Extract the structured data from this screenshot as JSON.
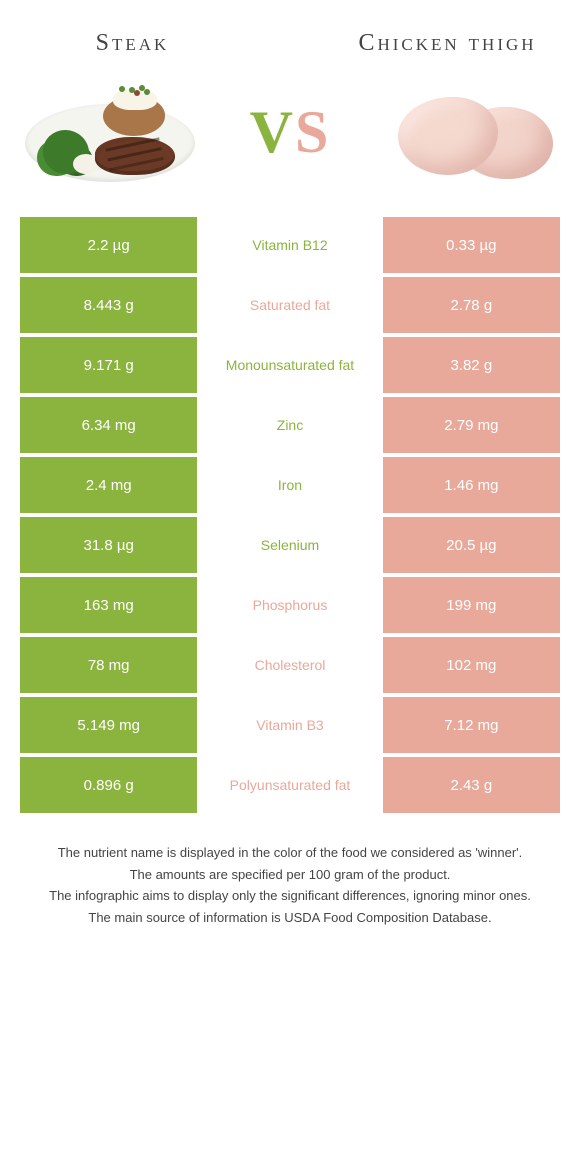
{
  "colors": {
    "left": "#8bb43e",
    "right": "#e8a99a",
    "vs_left": "#8bb43e",
    "vs_right": "#e8a99a"
  },
  "header": {
    "left_title": "Steak",
    "right_title": "Chicken thigh",
    "vs_v": "V",
    "vs_s": "S"
  },
  "rows": [
    {
      "left": "2.2 µg",
      "mid": "Vitamin B12",
      "right": "0.33 µg",
      "winner": "left"
    },
    {
      "left": "8.443 g",
      "mid": "Saturated fat",
      "right": "2.78 g",
      "winner": "right"
    },
    {
      "left": "9.171 g",
      "mid": "Monounsaturated fat",
      "right": "3.82 g",
      "winner": "left"
    },
    {
      "left": "6.34 mg",
      "mid": "Zinc",
      "right": "2.79 mg",
      "winner": "left"
    },
    {
      "left": "2.4 mg",
      "mid": "Iron",
      "right": "1.46 mg",
      "winner": "left"
    },
    {
      "left": "31.8 µg",
      "mid": "Selenium",
      "right": "20.5 µg",
      "winner": "left"
    },
    {
      "left": "163 mg",
      "mid": "Phosphorus",
      "right": "199 mg",
      "winner": "right"
    },
    {
      "left": "78 mg",
      "mid": "Cholesterol",
      "right": "102 mg",
      "winner": "right"
    },
    {
      "left": "5.149 mg",
      "mid": "Vitamin B3",
      "right": "7.12 mg",
      "winner": "right"
    },
    {
      "left": "0.896 g",
      "mid": "Polyunsaturated fat",
      "right": "2.43 g",
      "winner": "right"
    }
  ],
  "footer": {
    "line1": "The nutrient name is displayed in the color of the food we considered as 'winner'.",
    "line2": "The amounts are specified per 100 gram of the product.",
    "line3": "The infographic aims to display only the significant differences, ignoring minor ones.",
    "line4": "The main source of information is USDA Food Composition Database."
  }
}
